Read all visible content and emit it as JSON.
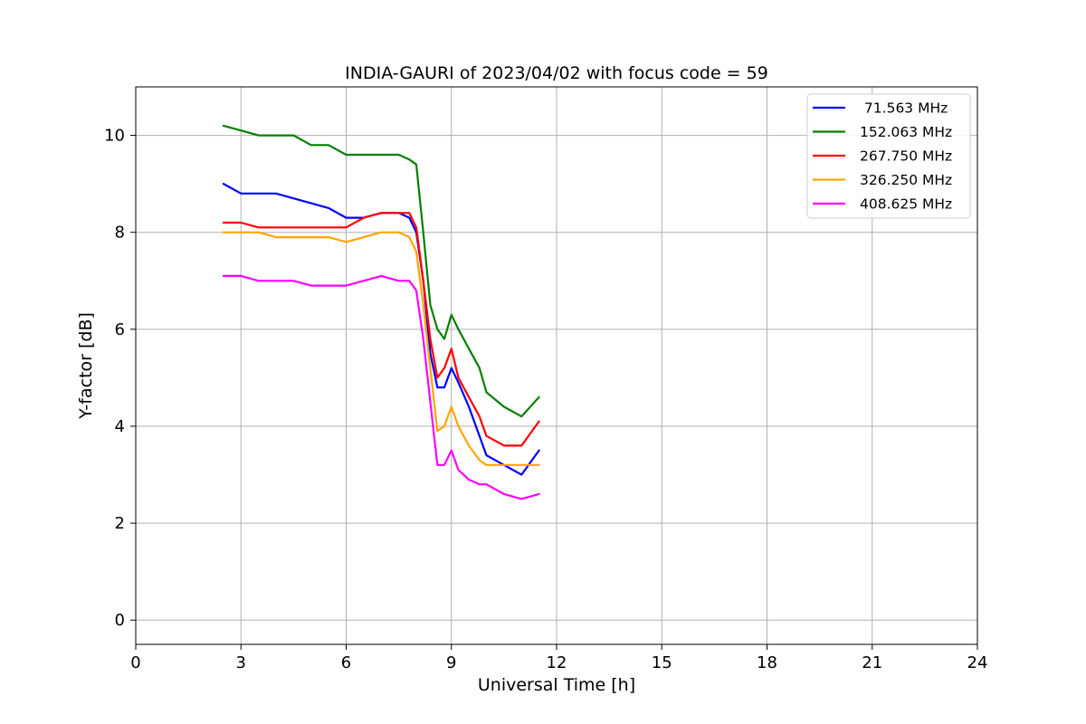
{
  "chart_data": {
    "type": "line",
    "title": "INDIA-GAURI of 2023/04/02 with focus code = 59",
    "xlabel": "Universal Time [h]",
    "ylabel": "Y-factor [dB]",
    "xlim": [
      0,
      24
    ],
    "ylim": [
      -0.5,
      11
    ],
    "xticks": [
      0,
      3,
      6,
      9,
      12,
      15,
      18,
      21,
      24
    ],
    "yticks": [
      0,
      2,
      4,
      6,
      8,
      10
    ],
    "grid": true,
    "legend_position": "top-right",
    "series": [
      {
        "name": " 71.563 MHz",
        "color": "#0000ff",
        "x": [
          2.5,
          3.0,
          3.5,
          4.0,
          4.5,
          5.0,
          5.5,
          6.0,
          6.5,
          7.0,
          7.5,
          7.8,
          8.0,
          8.2,
          8.4,
          8.6,
          8.8,
          9.0,
          9.2,
          9.5,
          9.8,
          10.0,
          10.5,
          11.0,
          11.5
        ],
        "y": [
          9.0,
          8.8,
          8.8,
          8.8,
          8.7,
          8.6,
          8.5,
          8.3,
          8.3,
          8.4,
          8.4,
          8.3,
          8.0,
          7.0,
          5.5,
          4.8,
          4.8,
          5.2,
          4.9,
          4.4,
          3.8,
          3.4,
          3.2,
          3.0,
          3.5
        ]
      },
      {
        "name": "152.063 MHz",
        "color": "#008000",
        "x": [
          2.5,
          3.0,
          3.5,
          4.0,
          4.5,
          5.0,
          5.5,
          6.0,
          6.5,
          7.0,
          7.5,
          7.8,
          8.0,
          8.2,
          8.4,
          8.6,
          8.8,
          9.0,
          9.2,
          9.5,
          9.8,
          10.0,
          10.5,
          11.0,
          11.5
        ],
        "y": [
          10.2,
          10.1,
          10.0,
          10.0,
          10.0,
          9.8,
          9.8,
          9.6,
          9.6,
          9.6,
          9.6,
          9.5,
          9.4,
          8.0,
          6.5,
          6.0,
          5.8,
          6.3,
          6.0,
          5.6,
          5.2,
          4.7,
          4.4,
          4.2,
          4.6
        ]
      },
      {
        "name": "267.750 MHz",
        "color": "#ff0000",
        "x": [
          2.5,
          3.0,
          3.5,
          4.0,
          4.5,
          5.0,
          5.5,
          6.0,
          6.5,
          7.0,
          7.5,
          7.8,
          8.0,
          8.2,
          8.4,
          8.6,
          8.8,
          9.0,
          9.2,
          9.5,
          9.8,
          10.0,
          10.5,
          11.0,
          11.5
        ],
        "y": [
          8.2,
          8.2,
          8.1,
          8.1,
          8.1,
          8.1,
          8.1,
          8.1,
          8.3,
          8.4,
          8.4,
          8.4,
          8.1,
          7.0,
          5.8,
          5.0,
          5.2,
          5.6,
          5.0,
          4.6,
          4.2,
          3.8,
          3.6,
          3.6,
          4.1
        ]
      },
      {
        "name": "326.250 MHz",
        "color": "#ffa500",
        "x": [
          2.5,
          3.0,
          3.5,
          4.0,
          4.5,
          5.0,
          5.5,
          6.0,
          6.5,
          7.0,
          7.5,
          7.8,
          8.0,
          8.2,
          8.4,
          8.6,
          8.8,
          9.0,
          9.2,
          9.5,
          9.8,
          10.0,
          10.5,
          11.0,
          11.5
        ],
        "y": [
          8.0,
          8.0,
          8.0,
          7.9,
          7.9,
          7.9,
          7.9,
          7.8,
          7.9,
          8.0,
          8.0,
          7.9,
          7.6,
          6.5,
          5.2,
          3.9,
          4.0,
          4.4,
          4.0,
          3.6,
          3.3,
          3.2,
          3.2,
          3.2,
          3.2
        ]
      },
      {
        "name": "408.625 MHz",
        "color": "#ff00ff",
        "x": [
          2.5,
          3.0,
          3.5,
          4.0,
          4.5,
          5.0,
          5.5,
          6.0,
          6.5,
          7.0,
          7.5,
          7.8,
          8.0,
          8.2,
          8.4,
          8.6,
          8.8,
          9.0,
          9.2,
          9.5,
          9.8,
          10.0,
          10.5,
          11.0,
          11.5
        ],
        "y": [
          7.1,
          7.1,
          7.0,
          7.0,
          7.0,
          6.9,
          6.9,
          6.9,
          7.0,
          7.1,
          7.0,
          7.0,
          6.8,
          5.8,
          4.5,
          3.2,
          3.2,
          3.5,
          3.1,
          2.9,
          2.8,
          2.8,
          2.6,
          2.5,
          2.6
        ]
      }
    ]
  }
}
